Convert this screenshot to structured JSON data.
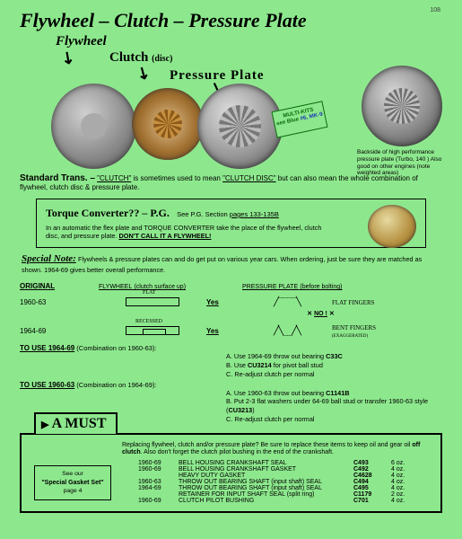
{
  "pageNumber": "108",
  "title": "Flywheel – Clutch – Pressure Plate",
  "labels": {
    "flywheel": "Flywheel",
    "clutch": "Clutch",
    "clutchDisc": "(disc)",
    "pressurePlate": "Pressure  Plate"
  },
  "multikits": {
    "l1": "MULTI-KITS",
    "l2": "see Blue ",
    "l3": "#6, MK-9"
  },
  "pp2caption": "Backside of high performance pressure plate (Turbo, 140 ) Also good on other engines (note weighted areas)",
  "stdtrans": {
    "heading": "Standard Trans. –",
    "body1": "\"CLUTCH\"",
    "body2": " is sometimes used to mean ",
    "body3": "\"CLUTCH DISC\"",
    "body4": " but can also mean the whole combination of flywheel, clutch disc & pressure plate."
  },
  "tc": {
    "title": "Torque Converter?? – P.G.",
    "see": "See P.G. Section ",
    "pages": "pages 133-135B",
    "body": "In an automatic the flex plate and TORQUE CONVERTER take the place of the flywheel, clutch disc, and pressure plate. ",
    "dont": "DON'T CALL IT A FLYWHEEL!"
  },
  "special": {
    "heading": "Special Note:",
    "body": "Flywheels & pressure plates can and do get put on various year cars. When ordering, just be sure they are matched as shown. 1964-69 gives better overall performance."
  },
  "cols": {
    "c1": "ORIGINAL",
    "c2": "FLYWHEEL",
    "c2sub": "(clutch surface up)",
    "c3": "PRESSURE PLATE",
    "c3sub": "(before bolting)"
  },
  "years": {
    "y1": "1960-63",
    "y2": "1964-69"
  },
  "yes": "Yes",
  "no": "NO !",
  "flat": "FLAT FINGERS",
  "bent": "BENT FINGERS",
  "bentex": "(EXAGGERATED)",
  "touse1": {
    "h": "TO USE 1964-69",
    "t": " (Combination on 1960-63):"
  },
  "touse1list": {
    "a": "A. Use 1964-69 throw out bearing ",
    "apn": "C33C",
    "b": "B. Use ",
    "bpn": "CU3214",
    "b2": " for pivot ball stud",
    "c": "C. Re-adjust clutch per normal"
  },
  "touse2": {
    "h": "TO USE 1960-63",
    "t": " (Combination on 1964-69):"
  },
  "touse2list": {
    "a": "A. Use 1960-63 throw out bearing ",
    "apn": "C1141B",
    "b": "B. Put 2-3 flat washers under 64-69 ball stud or transfer 1960-63 style (",
    "bpn": "CU3213",
    "b2": ")",
    "c": "C. Re-adjust clutch per normal"
  },
  "must": {
    "title": "A MUST",
    "body1": "Replacing flywheel, clutch and/or pressure plate? Be sure to replace these items to keep oil and gear oil ",
    "off": "off clutch",
    "body2": ". Also don't forget the clutch pilot bushing in the end of the crankshaft."
  },
  "gasket": {
    "l1": "See our",
    "l2": "\"Special Gasket Set\"",
    "l3": "page 4"
  },
  "parts": [
    {
      "yr": "1960-69",
      "desc": "BELL HOUSING CRANKSHAFT SEAL",
      "pn": "C493",
      "sz": "6 oz."
    },
    {
      "yr": "1960-69",
      "desc": "BELL HOUSING CRANKSHAFT GASKET",
      "pn": "C492",
      "sz": "4 oz."
    },
    {
      "yr": "",
      "desc": "HEAVY DUTY GASKET",
      "pn": "C4628",
      "sz": "4 oz."
    },
    {
      "yr": "1960-63",
      "desc": "THROW OUT BEARING SHAFT (input shaft) SEAL",
      "pn": "C494",
      "sz": "4 oz."
    },
    {
      "yr": "1964-69",
      "desc": "THROW OUT BEARING SHAFT (input shaft) SEAL",
      "pn": "C495",
      "sz": "4 oz."
    },
    {
      "yr": "",
      "desc": "RETAINER FOR INPUT SHAFT SEAL (split ring)",
      "pn": "C1179",
      "sz": "2 oz."
    },
    {
      "yr": "1960-69",
      "desc": "CLUTCH PILOT BUSHING",
      "pn": "C701",
      "sz": "4 oz."
    }
  ]
}
